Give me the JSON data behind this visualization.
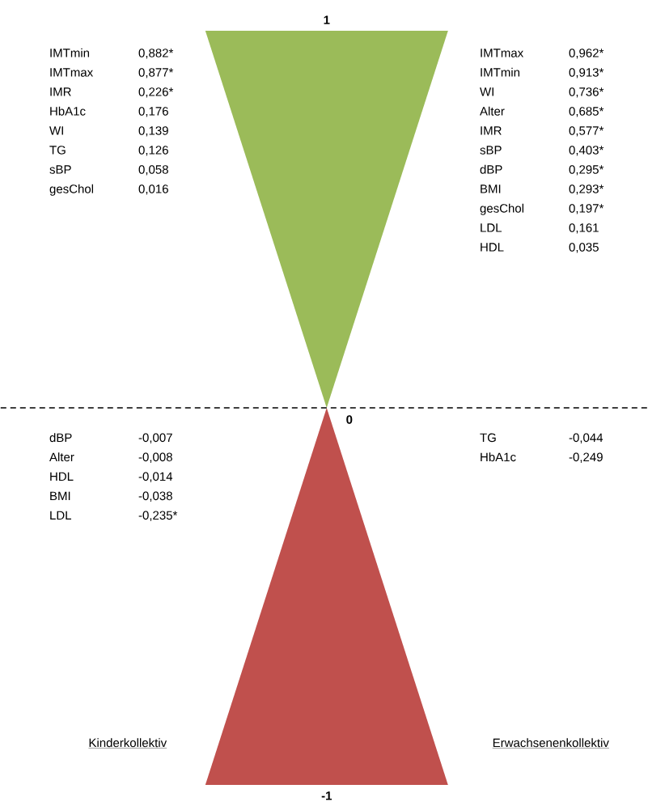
{
  "chart_data": [
    {
      "type": "other",
      "title": "Kinderkollektiv",
      "categories": [
        "IMTmin",
        "IMTmax",
        "IMR",
        "HbA1c",
        "WI",
        "TG",
        "sBP",
        "gesChol",
        "dBP",
        "Alter",
        "HDL",
        "BMI",
        "LDL"
      ],
      "values": [
        0.882,
        0.877,
        0.226,
        0.176,
        0.139,
        0.126,
        0.058,
        0.016,
        -0.007,
        -0.008,
        -0.014,
        -0.038,
        -0.235
      ],
      "value_labels": [
        "0,882*",
        "0,877*",
        "0,226*",
        "0,176",
        "0,139",
        "0,126",
        "0,058",
        "0,016",
        "-0,007",
        "-0,008",
        "-0,014",
        "-0,038",
        "-0,235*"
      ],
      "annotations": [
        "1",
        "0",
        "-1"
      ]
    },
    {
      "type": "other",
      "title": "Erwachsenenkollektiv",
      "categories": [
        "IMTmax",
        "IMTmin",
        "WI",
        "Alter",
        "IMR",
        "sBP",
        "dBP",
        "BMI",
        "gesChol",
        "LDL",
        "HDL",
        "TG",
        "HbA1c"
      ],
      "values": [
        0.962,
        0.913,
        0.736,
        0.685,
        0.577,
        0.403,
        0.295,
        0.293,
        0.197,
        0.161,
        0.035,
        -0.044,
        -0.249
      ],
      "value_labels": [
        "0,962*",
        "0,913*",
        "0,736*",
        "0,685*",
        "0,577*",
        "0,403*",
        "0,295*",
        "0,293*",
        "0,197*",
        "0,161",
        "0,035",
        "-0,044",
        "-0,249"
      ]
    }
  ]
}
